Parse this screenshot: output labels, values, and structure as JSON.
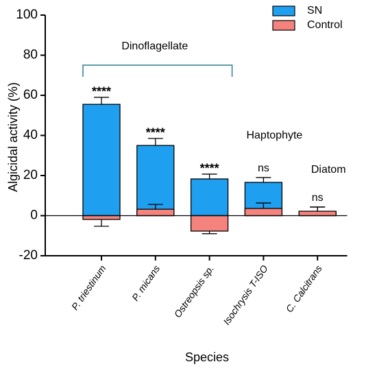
{
  "chart_data": {
    "type": "bar",
    "x_label": "Species",
    "y_label": "Algicidal activity (%)",
    "categories": [
      "P. triestinum",
      "P. micans",
      "Ostreopsis sp.",
      "Isochrysis T-ISO",
      "C. Calcitrans"
    ],
    "series": [
      {
        "name": "SN",
        "color": "#1e9ff0",
        "values": [
          55.5,
          35,
          18.3,
          16.6,
          2
        ],
        "errors": [
          3.5,
          3.5,
          2.4,
          2.4,
          2.3
        ]
      },
      {
        "name": "Control",
        "color": "#f4837d",
        "values": [
          -1.9,
          3.2,
          -7.7,
          3.6,
          2.2
        ],
        "errors": [
          3.4,
          2.4,
          1.3,
          2.7,
          2.1
        ]
      }
    ],
    "significance": [
      "****",
      "****",
      "****",
      "ns",
      "ns"
    ],
    "groups": [
      {
        "label": "Dinoflagellate",
        "from": 0,
        "to": 2
      },
      {
        "label": "Haptophyte",
        "from": 3,
        "to": 3
      },
      {
        "label": "Diatom",
        "from": 4,
        "to": 4
      }
    ],
    "ylim": [
      -20,
      100
    ],
    "yticks": [
      -20,
      0,
      20,
      40,
      60,
      80,
      100
    ],
    "legend": "top-right"
  }
}
